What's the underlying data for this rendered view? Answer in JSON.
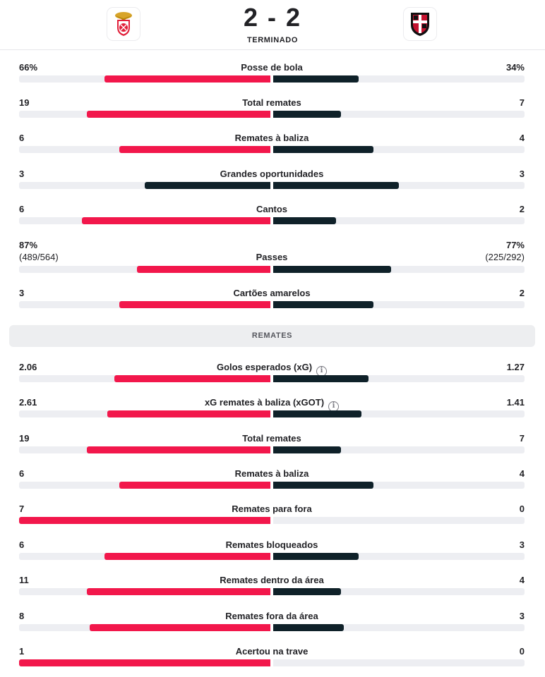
{
  "match": {
    "home_team": "Benfica",
    "away_team": "Casa Pia",
    "score": "2 - 2",
    "status": "TERMINADO"
  },
  "colors": {
    "home": "#f2174b",
    "away": "#0f2129",
    "track": "#edeef2"
  },
  "overview": [
    {
      "label": "Posse de bola",
      "home": "66%",
      "away": "34%",
      "home_frac": 0.66,
      "away_frac": 0.34
    },
    {
      "label": "Total remates",
      "home": "19",
      "away": "7",
      "home_frac": 0.73,
      "away_frac": 0.27
    },
    {
      "label": "Remates à baliza",
      "home": "6",
      "away": "4",
      "home_frac": 0.6,
      "away_frac": 0.4
    },
    {
      "label": "Grandes oportunidades",
      "home": "3",
      "away": "3",
      "home_frac": 0.5,
      "away_frac": 0.5
    },
    {
      "label": "Cantos",
      "home": "6",
      "away": "2",
      "home_frac": 0.75,
      "away_frac": 0.25
    },
    {
      "label": "Passes",
      "home": "87%",
      "away": "77%",
      "home_sub": "(489/564)",
      "away_sub": "(225/292)",
      "home_frac": 0.53,
      "away_frac": 0.47
    },
    {
      "label": "Cartões amarelos",
      "home": "3",
      "away": "2",
      "home_frac": 0.6,
      "away_frac": 0.4
    }
  ],
  "shots_section": {
    "title": "REMATES"
  },
  "shots": [
    {
      "label": "Golos esperados (xG)",
      "info": true,
      "home": "2.06",
      "away": "1.27",
      "home_frac": 0.62,
      "away_frac": 0.38
    },
    {
      "label": "xG remates à baliza (xGOT)",
      "info": true,
      "home": "2.61",
      "away": "1.41",
      "home_frac": 0.65,
      "away_frac": 0.35
    },
    {
      "label": "Total remates",
      "home": "19",
      "away": "7",
      "home_frac": 0.73,
      "away_frac": 0.27
    },
    {
      "label": "Remates à baliza",
      "home": "6",
      "away": "4",
      "home_frac": 0.6,
      "away_frac": 0.4
    },
    {
      "label": "Remates para fora",
      "home": "7",
      "away": "0",
      "home_frac": 1.0,
      "away_frac": 0.0
    },
    {
      "label": "Remates bloqueados",
      "home": "6",
      "away": "3",
      "home_frac": 0.66,
      "away_frac": 0.34
    },
    {
      "label": "Remates dentro da área",
      "home": "11",
      "away": "4",
      "home_frac": 0.73,
      "away_frac": 0.27
    },
    {
      "label": "Remates fora da área",
      "home": "8",
      "away": "3",
      "home_frac": 0.72,
      "away_frac": 0.28
    },
    {
      "label": "Acertou na trave",
      "home": "1",
      "away": "0",
      "home_frac": 1.0,
      "away_frac": 0.0
    }
  ]
}
